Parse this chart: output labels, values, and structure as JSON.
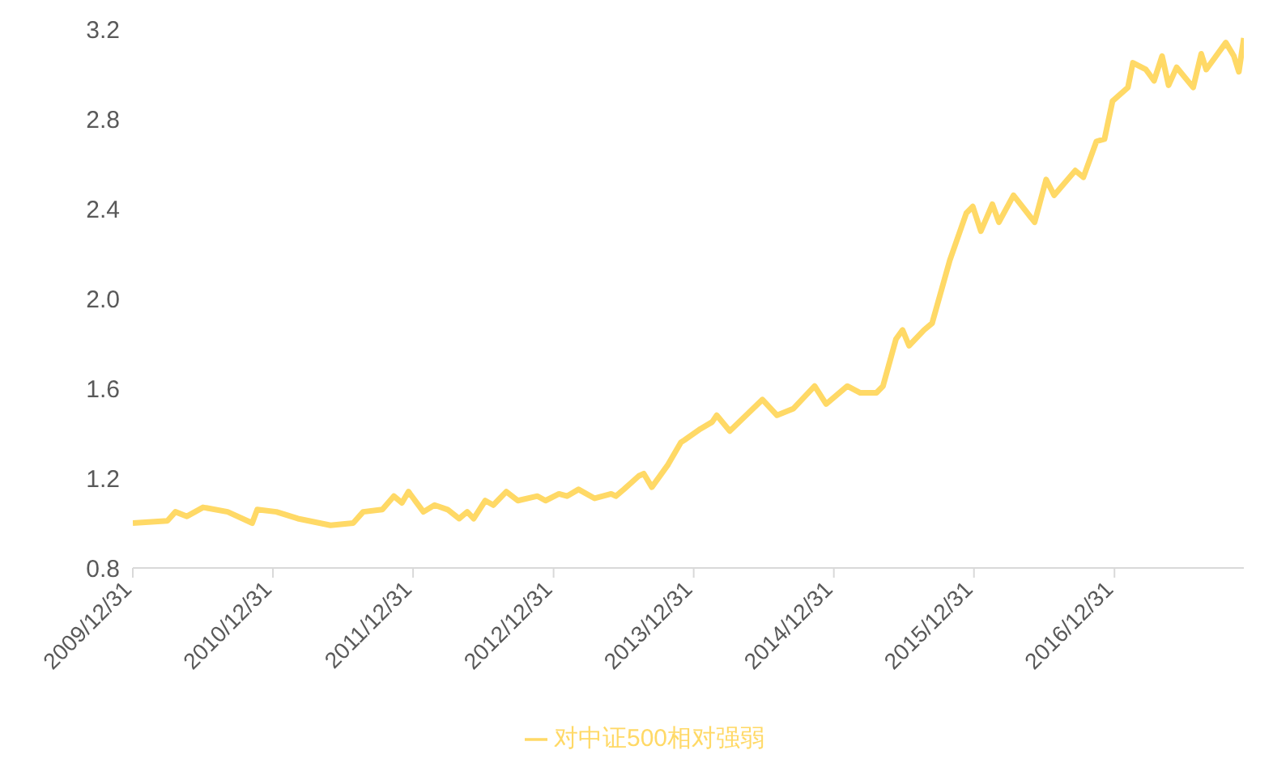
{
  "chart_data": {
    "type": "line",
    "xlim": [
      "2009-12-31",
      "2017-12-03"
    ],
    "xticks": [
      {
        "value": "2009-12-31",
        "label": "2009/12/31"
      },
      {
        "value": "2010-12-31",
        "label": "2010/12/31"
      },
      {
        "value": "2011-12-31",
        "label": "2011/12/31"
      },
      {
        "value": "2012-12-31",
        "label": "2012/12/31"
      },
      {
        "value": "2013-12-31",
        "label": "2013/12/31"
      },
      {
        "value": "2014-12-31",
        "label": "2014/12/31"
      },
      {
        "value": "2015-12-31",
        "label": "2015/12/31"
      },
      {
        "value": "2016-12-31",
        "label": "2016/12/31"
      }
    ],
    "ylim": [
      0.8,
      3.2
    ],
    "yticks": [
      0.8,
      1.2,
      1.6,
      {
        "value": 2,
        "label": "2.0"
      },
      2.4,
      2.8,
      3.2
    ],
    "grid": false,
    "legend": "bottom",
    "marker": "none",
    "line_style": "solid",
    "x": [
      "2009-12-31",
      "2010-03-31",
      "2010-04-21",
      "2010-05-21",
      "2010-07-02",
      "2010-09-04",
      "2010-11-07",
      "2010-11-20",
      "2011-01-09",
      "2011-03-06",
      "2011-05-30",
      "2011-07-28",
      "2011-08-23",
      "2011-10-12",
      "2011-11-11",
      "2011-12-02",
      "2011-12-19",
      "2012-01-27",
      "2012-02-25",
      "2012-03-30",
      "2012-04-29",
      "2012-05-20",
      "2012-06-06",
      "2012-07-06",
      "2012-07-27",
      "2012-08-30",
      "2012-09-29",
      "2012-11-19",
      "2012-12-10",
      "2013-01-14",
      "2013-02-04",
      "2013-03-06",
      "2013-04-17",
      "2013-05-30",
      "2013-06-11",
      "2013-07-02",
      "2013-08-10",
      "2013-08-23",
      "2013-09-13",
      "2013-10-25",
      "2013-11-28",
      "2013-12-07",
      "2014-01-18",
      "2014-02-17",
      "2014-03-01",
      "2014-04-04",
      "2014-06-28",
      "2014-08-05",
      "2014-09-17",
      "2014-11-11",
      "2014-12-11",
      "2015-02-04",
      "2015-03-10",
      "2015-04-21",
      "2015-05-08",
      "2015-06-11",
      "2015-06-28",
      "2015-07-15",
      "2015-08-23",
      "2015-09-13",
      "2015-10-29",
      "2015-12-11",
      "2015-12-28",
      "2016-01-18",
      "2016-02-17",
      "2016-03-05",
      "2016-04-12",
      "2016-06-06",
      "2016-07-06",
      "2016-07-27",
      "2016-09-20",
      "2016-10-11",
      "2016-11-14",
      "2016-12-05",
      "2016-12-26",
      "2017-02-04",
      "2017-02-17",
      "2017-03-23",
      "2017-04-13",
      "2017-05-04",
      "2017-05-21",
      "2017-06-11",
      "2017-07-24",
      "2017-08-14",
      "2017-08-27",
      "2017-10-17",
      "2017-11-07",
      "2017-11-20",
      "2017-12-03"
    ],
    "series": [
      {
        "name": "对中证500相对强弱",
        "color": "#ffd966",
        "values": [
          1.0,
          1.01,
          1.05,
          1.03,
          1.07,
          1.05,
          1.0,
          1.06,
          1.05,
          1.02,
          0.99,
          1.0,
          1.05,
          1.06,
          1.12,
          1.09,
          1.14,
          1.05,
          1.08,
          1.06,
          1.02,
          1.05,
          1.02,
          1.1,
          1.08,
          1.14,
          1.1,
          1.12,
          1.1,
          1.13,
          1.12,
          1.15,
          1.11,
          1.13,
          1.12,
          1.15,
          1.21,
          1.22,
          1.16,
          1.26,
          1.36,
          1.37,
          1.42,
          1.45,
          1.48,
          1.41,
          1.55,
          1.48,
          1.51,
          1.61,
          1.53,
          1.61,
          1.58,
          1.58,
          1.61,
          1.82,
          1.86,
          1.79,
          1.86,
          1.89,
          2.17,
          2.38,
          2.41,
          2.3,
          2.42,
          2.34,
          2.46,
          2.34,
          2.53,
          2.46,
          2.57,
          2.54,
          2.7,
          2.71,
          2.88,
          2.94,
          3.05,
          3.02,
          2.97,
          3.08,
          2.95,
          3.03,
          2.94,
          3.09,
          3.02,
          3.14,
          3.08,
          3.01,
          3.16
        ]
      }
    ]
  }
}
